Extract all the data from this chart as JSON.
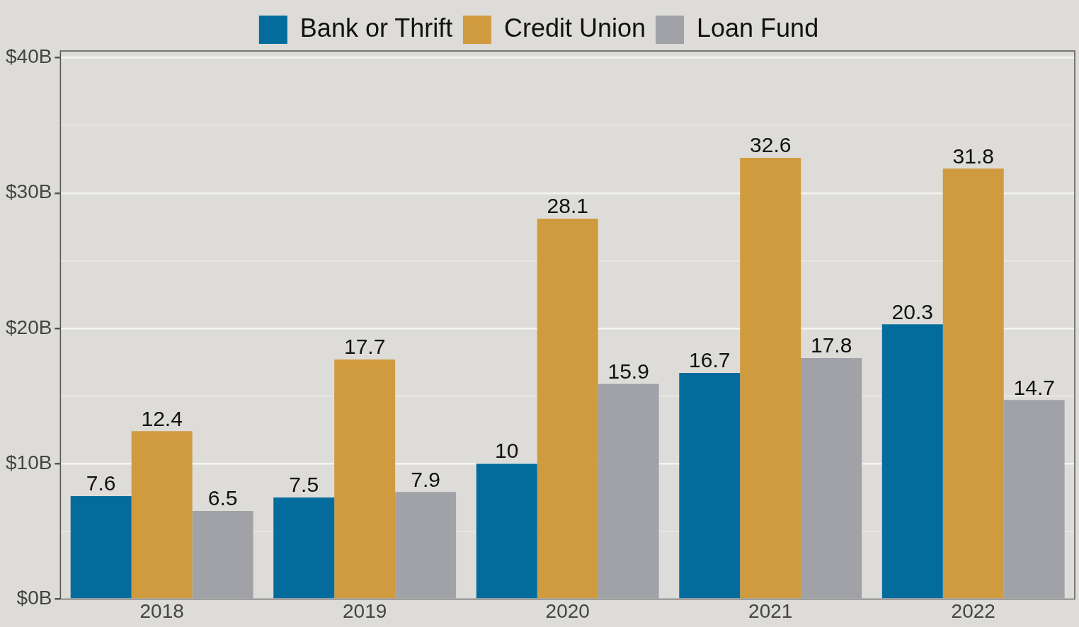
{
  "chart_data": {
    "type": "bar",
    "categories": [
      "2018",
      "2019",
      "2020",
      "2021",
      "2022"
    ],
    "series": [
      {
        "name": "Bank or Thrift",
        "color": "#036c9c",
        "values": [
          7.6,
          7.5,
          10,
          16.7,
          20.3
        ]
      },
      {
        "name": "Credit Union",
        "color": "#d09a3e",
        "values": [
          12.4,
          17.7,
          28.1,
          32.6,
          31.8
        ]
      },
      {
        "name": "Loan Fund",
        "color": "#a0a2a8",
        "values": [
          6.5,
          7.9,
          15.9,
          17.8,
          14.7
        ]
      }
    ],
    "ylim": [
      0,
      40.5
    ],
    "yticks": [
      {
        "value": 0,
        "label": "$0B"
      },
      {
        "value": 5,
        "label": null
      },
      {
        "value": 10,
        "label": "$10B"
      },
      {
        "value": 15,
        "label": null
      },
      {
        "value": 20,
        "label": "$20B"
      },
      {
        "value": 25,
        "label": null
      },
      {
        "value": 30,
        "label": "$30B"
      },
      {
        "value": 35,
        "label": null
      },
      {
        "value": 40,
        "label": "$40B"
      }
    ],
    "grid": "y",
    "legend": "top",
    "data_labels": true
  }
}
